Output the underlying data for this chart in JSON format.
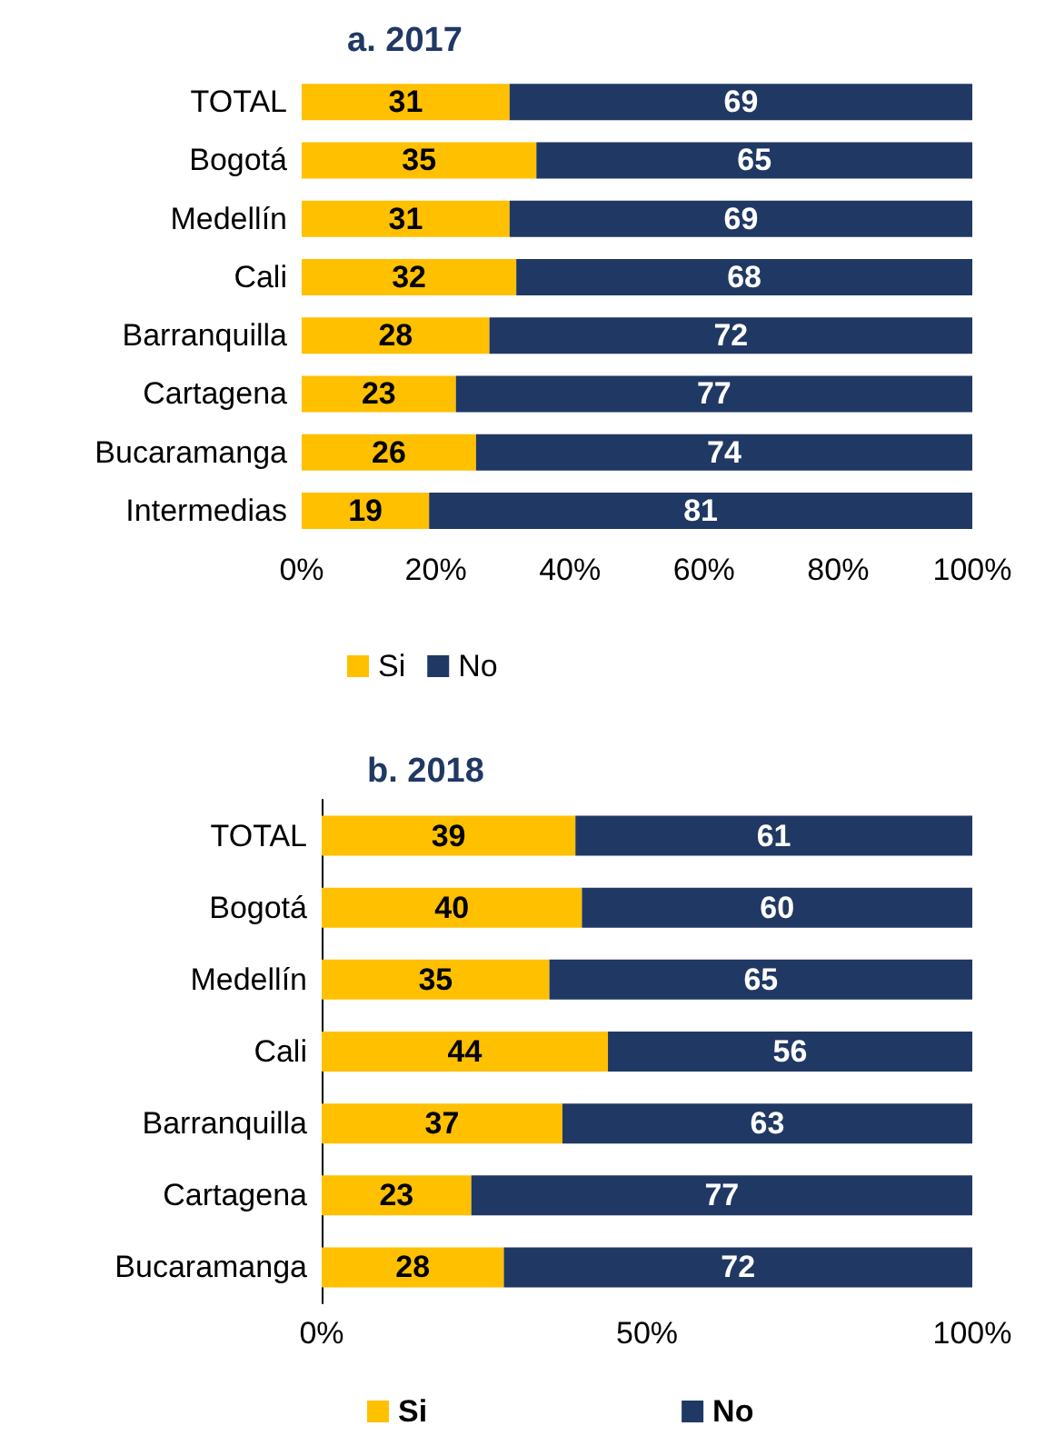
{
  "chart_data": [
    {
      "type": "bar",
      "title": "a. 2017",
      "orientation": "horizontal",
      "stacked": true,
      "data_labels": true,
      "legend": "bottom",
      "grid": false,
      "categories": [
        "TOTAL",
        "Bogotá",
        "Medellín",
        "Cali",
        "Barranquilla",
        "Cartagena",
        "Bucaramanga",
        "Intermedias"
      ],
      "series": [
        {
          "name": "Si",
          "color": "#ffc000",
          "values": [
            31,
            35,
            31,
            32,
            28,
            23,
            26,
            19
          ]
        },
        {
          "name": "No",
          "color": "#203864",
          "values": [
            69,
            65,
            69,
            68,
            72,
            77,
            74,
            81
          ]
        }
      ],
      "xlim": [
        0,
        100
      ],
      "xticks": [
        {
          "value": 0,
          "label": "0%"
        },
        {
          "value": 20,
          "label": "20%"
        },
        {
          "value": 40,
          "label": "40%"
        },
        {
          "value": 60,
          "label": "60%"
        },
        {
          "value": 80,
          "label": "80%"
        },
        {
          "value": 100,
          "label": "100%"
        }
      ]
    },
    {
      "type": "bar",
      "title": "b. 2018",
      "orientation": "horizontal",
      "stacked": true,
      "data_labels": true,
      "legend": "bottom",
      "grid": false,
      "categories": [
        "TOTAL",
        "Bogotá",
        "Medellín",
        "Cali",
        "Barranquilla",
        "Cartagena",
        "Bucaramanga"
      ],
      "series": [
        {
          "name": "Si",
          "color": "#ffc000",
          "values": [
            39,
            40,
            35,
            44,
            37,
            23,
            28
          ]
        },
        {
          "name": "No",
          "color": "#203864",
          "values": [
            61,
            60,
            65,
            56,
            63,
            77,
            72
          ]
        }
      ],
      "xlim": [
        0,
        100
      ],
      "xticks": [
        {
          "value": 0,
          "label": "0%"
        },
        {
          "value": 50,
          "label": "50%"
        },
        {
          "value": 100,
          "label": "100%"
        }
      ]
    }
  ]
}
